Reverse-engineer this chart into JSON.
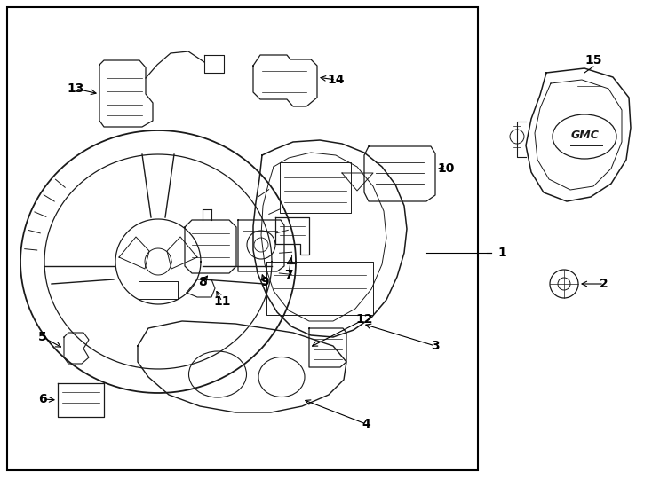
{
  "bg_color": "#ffffff",
  "line_color": "#1a1a1a",
  "text_color": "#000000",
  "fig_width": 7.34,
  "fig_height": 5.4,
  "dpi": 100
}
